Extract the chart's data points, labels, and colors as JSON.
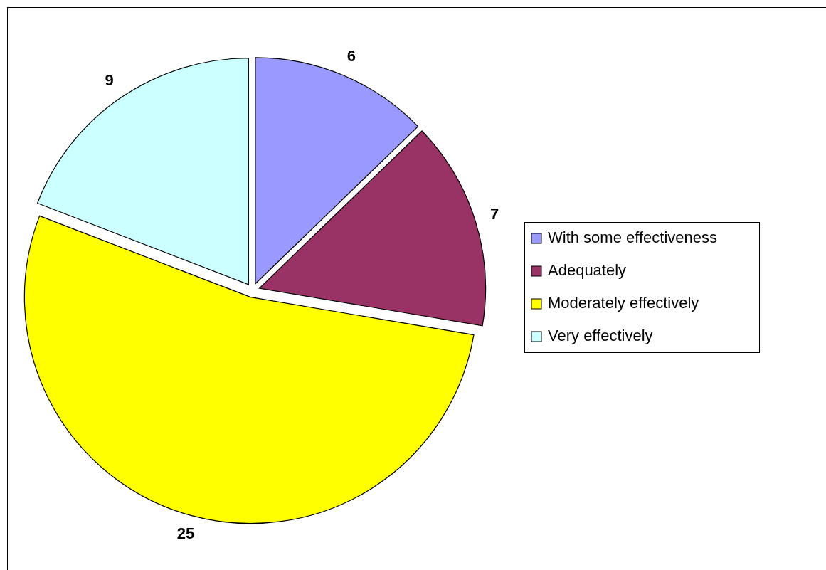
{
  "chart_data": {
    "type": "pie",
    "categories": [
      "With some effectiveness",
      "Adequately",
      "Moderately effectively",
      "Very effectively"
    ],
    "values": [
      6,
      7,
      25,
      9
    ],
    "colors": [
      "#9999ff",
      "#993366",
      "#ffff00",
      "#ccffff"
    ],
    "data_labels": true,
    "legend": "right"
  }
}
